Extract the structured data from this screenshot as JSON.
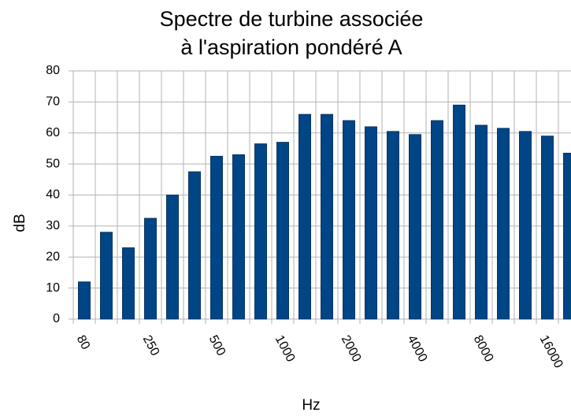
{
  "chart_data": {
    "type": "bar",
    "title": [
      "Spectre de turbine associée",
      "à l'aspiration pondéré A"
    ],
    "xlabel": "Hz",
    "ylabel": "dB",
    "categories": [
      "80",
      null,
      null,
      "250",
      null,
      null,
      "500",
      null,
      null,
      "1000",
      null,
      null,
      "2000",
      null,
      null,
      "4000",
      null,
      null,
      "8000",
      null,
      null,
      "16000",
      null
    ],
    "values": [
      12,
      28,
      23,
      32.5,
      40,
      47.5,
      52.5,
      53,
      56.5,
      57,
      66,
      66,
      64,
      62,
      60.5,
      59.5,
      64,
      69,
      62.5,
      61.5,
      60.5,
      59,
      53.5
    ],
    "color": "#004586",
    "ylim": [
      0,
      80
    ],
    "yticks": [
      0,
      10,
      20,
      30,
      40,
      50,
      60,
      70,
      80
    ],
    "grid": true
  }
}
